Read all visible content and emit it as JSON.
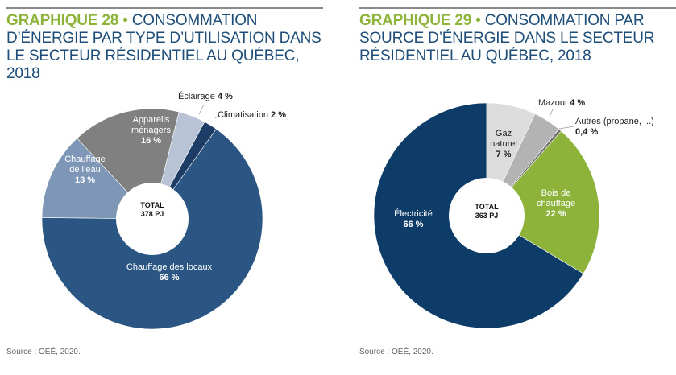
{
  "chart_data": [
    {
      "type": "pie",
      "title_number": "GRAPHIQUE 28",
      "title": "CONSOMMATION D’ÉNERGIE PAR TYPE D’UTILISATION DANS LE SECTEUR RÉSIDENTIEL AU QUÉBEC, 2018",
      "total_label": "TOTAL",
      "total_value": "378 PJ",
      "slices": [
        {
          "name": "Éclairage",
          "value": 4,
          "label": "4 %",
          "color": "#b8c4d6"
        },
        {
          "name": "Climatisation",
          "value": 2,
          "label": "2 %",
          "color": "#1d3d66"
        },
        {
          "name": "Chauffage des locaux",
          "value": 66,
          "label": "66 %",
          "color": "#2b5683"
        },
        {
          "name": "Chauffage de l’eau",
          "value": 13,
          "label": "13 %",
          "color": "#7f97b6"
        },
        {
          "name": "Appareils ménagers",
          "value": 16,
          "label": "16 %",
          "color": "#808080"
        }
      ],
      "source": "Source : OEÉ, 2020."
    },
    {
      "type": "pie",
      "title_number": "GRAPHIQUE 29",
      "title": "CONSOMMATION PAR SOURCE D’ÉNERGIE DANS LE SECTEUR RÉSIDENTIEL AU QUÉBEC, 2018",
      "total_label": "TOTAL",
      "total_value": "363 PJ",
      "slices": [
        {
          "name": "Gaz naturel",
          "value": 7,
          "label": "7 %",
          "color": "#dcdcdc"
        },
        {
          "name": "Mazout",
          "value": 4,
          "label": "4 %",
          "color": "#b3b3b3"
        },
        {
          "name": "Autres (propane, ...)",
          "value": 0.4,
          "label": "0,4 %",
          "color": "#6e6e6e"
        },
        {
          "name": "Bois de chauffage",
          "value": 22,
          "label": "22 %",
          "color": "#8db33a"
        },
        {
          "name": "Électricité",
          "value": 66,
          "label": "66 %",
          "color": "#0e3c68"
        }
      ],
      "source": "Source : OEÉ, 2020."
    }
  ]
}
